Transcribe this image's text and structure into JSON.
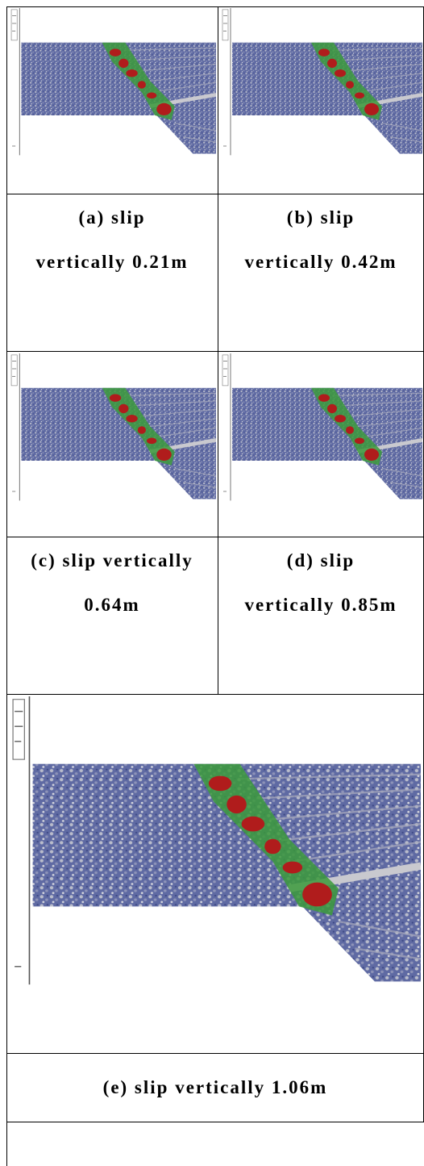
{
  "cells": [
    {
      "caption": "(a) slip vertically 0.21m"
    },
    {
      "caption": "(b) slip vertically 0.42m"
    },
    {
      "caption": "(c) slip vertically 0.64m"
    },
    {
      "caption": "(d) slip vertically 0.85m"
    },
    {
      "caption": "(e) slip vertically 1.06m"
    }
  ]
}
